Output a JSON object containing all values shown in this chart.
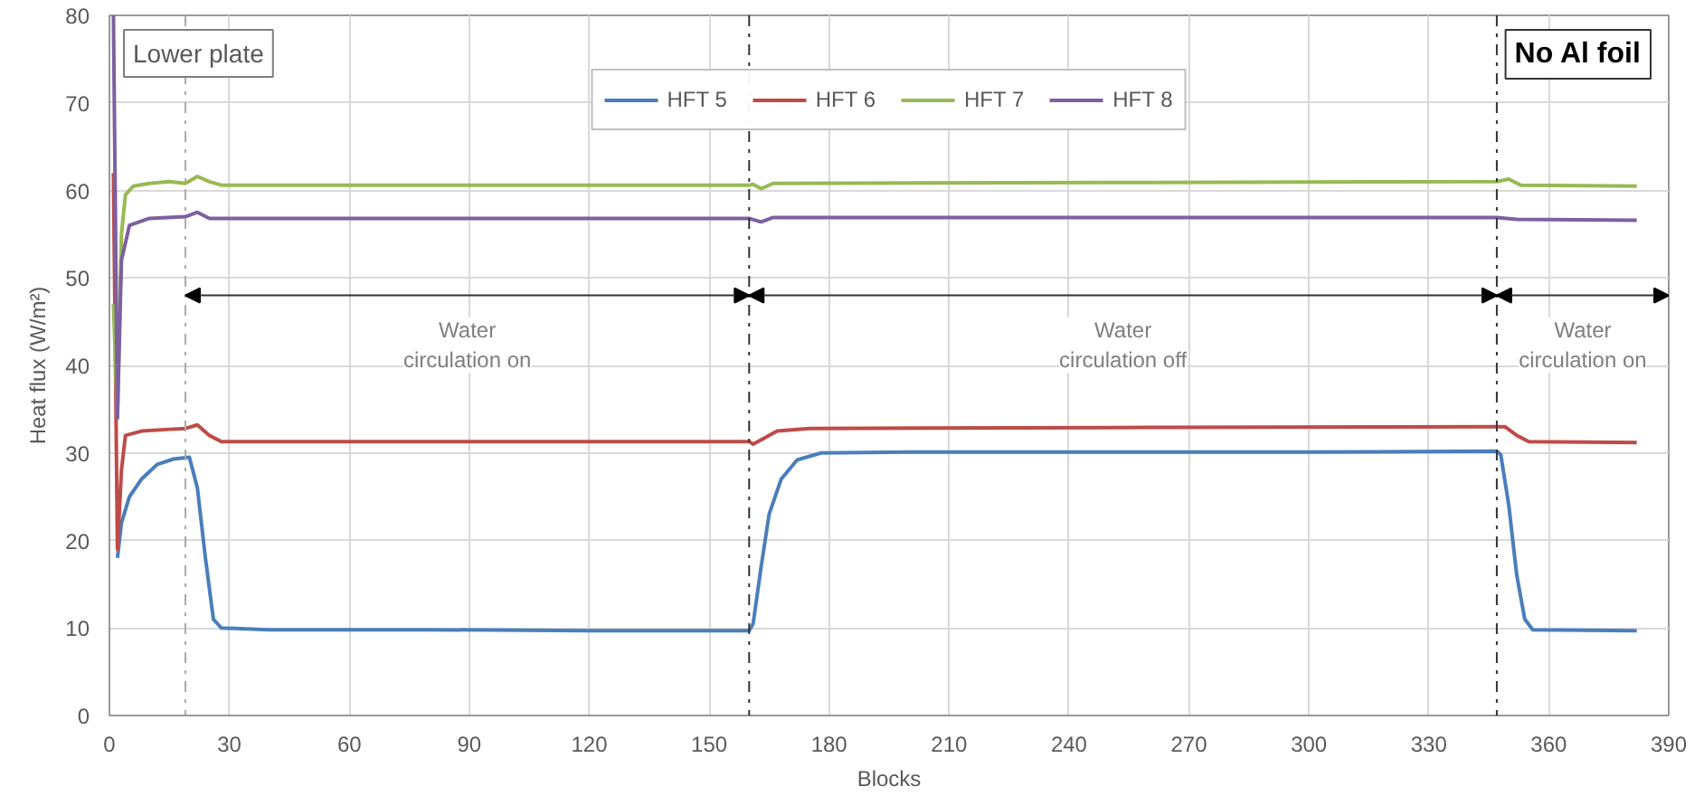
{
  "chart_data": {
    "type": "line",
    "xlabel": "Blocks",
    "ylabel": "Heat flux (W/m²)",
    "xlim": [
      0,
      390
    ],
    "xticks": [
      0,
      30,
      60,
      90,
      120,
      150,
      180,
      210,
      240,
      270,
      300,
      330,
      360,
      390
    ],
    "ylim": [
      0,
      80
    ],
    "yticks": [
      0,
      10,
      20,
      30,
      40,
      50,
      60,
      70,
      80
    ],
    "grid": true,
    "legend": "top",
    "marker": "none",
    "line_style": "solid",
    "series": [
      {
        "name": "HFT 5",
        "color": "#4a7ebb",
        "x": [
          2,
          3,
          5,
          8,
          12,
          16,
          20,
          22,
          24,
          26,
          28,
          40,
          80,
          120,
          160,
          161,
          163,
          165,
          168,
          172,
          178,
          200,
          250,
          300,
          347,
          348,
          350,
          352,
          354,
          356,
          382
        ],
        "values": [
          18,
          22,
          25,
          27,
          28.7,
          29.3,
          29.5,
          26,
          18,
          11,
          10,
          9.8,
          9.8,
          9.7,
          9.7,
          10.5,
          17,
          23,
          27,
          29.2,
          30,
          30.1,
          30.1,
          30.1,
          30.2,
          29.8,
          24,
          16,
          11,
          9.8,
          9.7
        ]
      },
      {
        "name": "HFT 6",
        "color": "#be4b48",
        "x": [
          1,
          2,
          3,
          4,
          8,
          15,
          19,
          22,
          25,
          28,
          80,
          160,
          161,
          163,
          167,
          175,
          250,
          347,
          349,
          352,
          355,
          382
        ],
        "values": [
          62,
          19,
          28,
          32,
          32.5,
          32.7,
          32.8,
          33.2,
          32,
          31.3,
          31.3,
          31.3,
          31,
          31.5,
          32.5,
          32.8,
          32.9,
          33,
          33,
          32,
          31.3,
          31.2
        ]
      },
      {
        "name": "HFT 7",
        "color": "#98b954",
        "x": [
          1,
          2,
          3,
          4,
          6,
          10,
          15,
          19,
          22,
          25,
          28,
          80,
          160,
          161,
          163,
          166,
          250,
          347,
          350,
          353,
          382
        ],
        "values": [
          47,
          34,
          55,
          59.5,
          60.5,
          60.8,
          61,
          60.8,
          61.6,
          61,
          60.6,
          60.6,
          60.6,
          60.7,
          60.2,
          60.8,
          60.9,
          61,
          61.3,
          60.6,
          60.5
        ]
      },
      {
        "name": "HFT 8",
        "color": "#7d60a0",
        "x": [
          1,
          2,
          3,
          5,
          10,
          19,
          22,
          25,
          80,
          160,
          163,
          166,
          250,
          347,
          352,
          382
        ],
        "values": [
          80,
          34,
          52,
          56,
          56.8,
          57,
          57.5,
          56.8,
          56.8,
          56.8,
          56.4,
          56.9,
          56.9,
          56.9,
          56.7,
          56.6
        ]
      }
    ],
    "ref_lines": [
      {
        "axis": "x",
        "value": 19,
        "color": "#aaaaaa",
        "line_style": "dashed"
      },
      {
        "axis": "x",
        "value": 160,
        "color": "#333333",
        "line_style": "dashed"
      },
      {
        "axis": "x",
        "value": 347,
        "color": "#333333",
        "line_style": "dashed"
      }
    ],
    "annotations": [
      "Water\ncirculation on",
      "Water\ncirculation off",
      "Water\ncirculation on",
      "Lower plate",
      "No Al foil"
    ]
  }
}
